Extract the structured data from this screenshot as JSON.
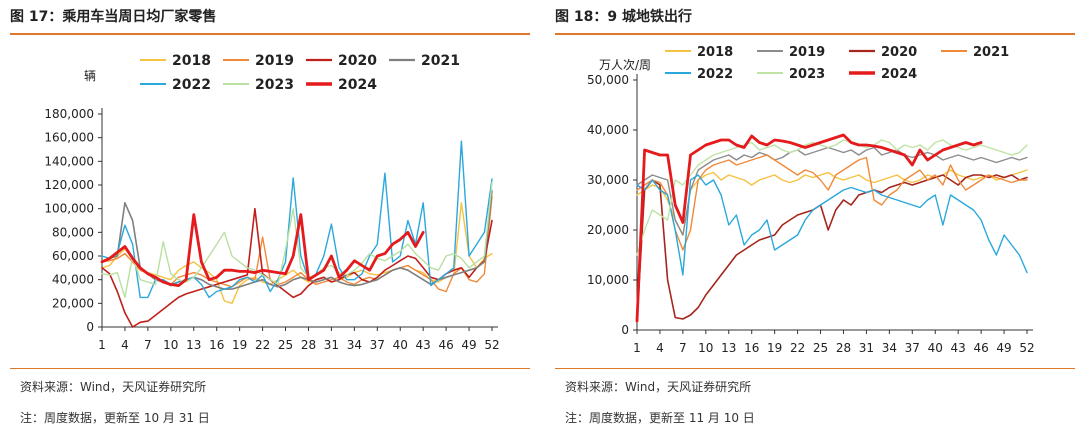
{
  "charts": [
    {
      "title": "图 17：乘用车当周日均厂家零售",
      "source": "资料来源：Wind，天风证券研究所",
      "note": "注：周度数据，更新至 10 月 31 日",
      "chart_data": {
        "type": "line",
        "ylabel": "辆",
        "ylim": [
          0,
          180000
        ],
        "yticks": [
          "0",
          "20,000",
          "40,000",
          "60,000",
          "80,000",
          "100,000",
          "120,000",
          "140,000",
          "160,000",
          "180,000"
        ],
        "xticks": [
          1,
          4,
          7,
          10,
          13,
          16,
          19,
          22,
          25,
          28,
          31,
          34,
          37,
          40,
          43,
          46,
          49,
          52
        ],
        "legend_position": "top",
        "series": [
          {
            "name": "2018",
            "color": "#f5c242",
            "width": 1.4,
            "values": [
              50000,
              52000,
              60000,
              66000,
              58000,
              50000,
              46000,
              44000,
              42000,
              40000,
              48000,
              52000,
              55000,
              50000,
              46000,
              40000,
              22000,
              20000,
              35000,
              40000,
              42000,
              38000,
              36000,
              40000,
              44000,
              48000,
              42000,
              38000,
              40000,
              42000,
              38000,
              40000,
              42000,
              46000,
              48000,
              45000,
              44000,
              46000,
              48000,
              50000,
              52000,
              48000,
              46000,
              40000,
              38000,
              42000,
              44000,
              105000,
              60000,
              50000,
              58000,
              62000
            ]
          },
          {
            "name": "2019",
            "color": "#f08a3a",
            "width": 1.4,
            "values": [
              55000,
              56000,
              58000,
              62000,
              55000,
              48000,
              45000,
              40000,
              38000,
              36000,
              42000,
              44000,
              46000,
              44000,
              40000,
              38000,
              36000,
              34000,
              38000,
              42000,
              40000,
              76000,
              40000,
              36000,
              38000,
              42000,
              46000,
              40000,
              36000,
              38000,
              40000,
              42000,
              38000,
              36000,
              40000,
              42000,
              40000,
              44000,
              48000,
              50000,
              52000,
              48000,
              44000,
              40000,
              32000,
              30000,
              45000,
              50000,
              40000,
              38000,
              45000,
              110000
            ]
          },
          {
            "name": "2020",
            "color": "#c0201c",
            "width": 1.6,
            "values": [
              50000,
              45000,
              30000,
              12000,
              0,
              4000,
              5000,
              10000,
              15000,
              20000,
              25000,
              28000,
              30000,
              32000,
              34000,
              36000,
              38000,
              40000,
              42000,
              44000,
              100000,
              45000,
              40000,
              35000,
              30000,
              25000,
              28000,
              35000,
              40000,
              42000,
              38000,
              40000,
              44000,
              46000,
              40000,
              38000,
              42000,
              48000,
              52000,
              56000,
              60000,
              58000,
              50000,
              42000,
              40000,
              45000,
              48000,
              50000,
              42000,
              50000,
              56000,
              90000
            ]
          },
          {
            "name": "2021",
            "color": "#7f7f7f",
            "width": 1.6,
            "values": [
              55000,
              58000,
              60000,
              105000,
              90000,
              50000,
              45000,
              40000,
              38000,
              35000,
              38000,
              40000,
              42000,
              40000,
              36000,
              34000,
              32000,
              32000,
              34000,
              36000,
              38000,
              40000,
              36000,
              34000,
              36000,
              40000,
              42000,
              40000,
              38000,
              40000,
              42000,
              38000,
              36000,
              35000,
              36000,
              38000,
              40000,
              44000,
              48000,
              50000,
              48000,
              44000,
              40000,
              36000,
              40000,
              42000,
              44000,
              46000,
              48000,
              50000,
              55000,
              115000
            ]
          },
          {
            "name": "2022",
            "color": "#2aa8dc",
            "width": 1.4,
            "values": [
              60000,
              58000,
              62000,
              86000,
              70000,
              25000,
              25000,
              40000,
              40000,
              36000,
              38000,
              40000,
              42000,
              36000,
              25000,
              30000,
              32000,
              34000,
              40000,
              42000,
              38000,
              44000,
              30000,
              40000,
              55000,
              126000,
              60000,
              40000,
              45000,
              60000,
              87000,
              50000,
              40000,
              40000,
              45000,
              60000,
              70000,
              130000,
              55000,
              60000,
              90000,
              70000,
              105000,
              35000,
              40000,
              45000,
              50000,
              157000,
              60000,
              70000,
              80000,
              125000
            ]
          },
          {
            "name": "2023",
            "color": "#b8e0a0",
            "width": 1.4,
            "values": [
              45000,
              44000,
              46000,
              25000,
              60000,
              40000,
              38000,
              36000,
              72000,
              45000,
              40000,
              38000,
              42000,
              50000,
              60000,
              70000,
              80000,
              60000,
              55000,
              50000,
              48000,
              44000,
              40000,
              36000,
              65000,
              100000,
              50000,
              42000,
              44000,
              50000,
              52000,
              46000,
              44000,
              48000,
              54000,
              62000,
              58000,
              56000,
              60000,
              64000,
              70000,
              62000,
              56000,
              50000,
              48000,
              60000,
              62000,
              58000,
              50000,
              55000,
              60000,
              122000
            ]
          },
          {
            "name": "2024",
            "color": "#e41a1c",
            "width": 2.8,
            "values": [
              55000,
              58000,
              63000,
              68000,
              58000,
              50000,
              45000,
              42000,
              38000,
              36000,
              35000,
              40000,
              95000,
              55000,
              40000,
              42000,
              48000,
              48000,
              47000,
              47000,
              46000,
              48000,
              47000,
              46000,
              45000,
              60000,
              95000,
              40000,
              44000,
              48000,
              60000,
              42000,
              48000,
              56000,
              52000,
              48000,
              60000,
              62000,
              70000,
              74000,
              80000,
              68000,
              80000,
              null,
              null,
              null,
              null,
              null,
              null,
              null,
              null,
              null
            ]
          }
        ]
      }
    },
    {
      "title": "图 18：9 城地铁出行",
      "source": "资料来源：Wind，天风证券研究所",
      "note": "注：周度数据，更新至 11 月 10 日",
      "chart_data": {
        "type": "line",
        "ylabel": "万人次/周",
        "ylim": [
          0,
          50000
        ],
        "yticks": [
          "0",
          "10,000",
          "20,000",
          "30,000",
          "40,000",
          "50,000"
        ],
        "xticks": [
          1,
          4,
          7,
          10,
          13,
          16,
          19,
          22,
          25,
          28,
          31,
          34,
          37,
          40,
          43,
          46,
          49,
          52
        ],
        "legend_position": "top",
        "series": [
          {
            "name": "2018",
            "color": "#f5c242",
            "width": 1.4,
            "values": [
              27000,
              28000,
              29000,
              28500,
              26000,
              22000,
              19000,
              28000,
              30000,
              31000,
              31500,
              30000,
              31000,
              30500,
              30000,
              29000,
              30000,
              30500,
              31000,
              30000,
              29500,
              30000,
              31000,
              30500,
              31000,
              31500,
              30500,
              30000,
              30500,
              31000,
              30000,
              29500,
              30000,
              30500,
              31000,
              30000,
              29500,
              30000,
              31000,
              30500,
              31000,
              32000,
              31000,
              30500,
              30000,
              30500,
              31000,
              30000,
              30500,
              31000,
              31500,
              32000
            ]
          },
          {
            "name": "2019",
            "color": "#8c8c8c",
            "width": 1.4,
            "values": [
              29000,
              30000,
              31000,
              30500,
              30000,
              22000,
              19000,
              28000,
              32000,
              33000,
              34000,
              34500,
              35000,
              34000,
              35000,
              34500,
              35500,
              35000,
              34000,
              34500,
              35500,
              36000,
              35000,
              35500,
              36000,
              36500,
              36000,
              35500,
              36000,
              35000,
              36000,
              36500,
              35000,
              35500,
              36000,
              35000,
              34500,
              35000,
              35500,
              35000,
              34000,
              34500,
              35000,
              34500,
              34000,
              34500,
              34000,
              33500,
              34000,
              34500,
              34000,
              34500
            ]
          },
          {
            "name": "2020",
            "color": "#a5261d",
            "width": 1.6,
            "values": [
              2000,
              28000,
              30000,
              29000,
              10000,
              2500,
              2200,
              3000,
              4500,
              7000,
              9000,
              11000,
              13000,
              15000,
              16000,
              17000,
              18000,
              18500,
              19000,
              21000,
              22000,
              23000,
              23500,
              24000,
              25000,
              20000,
              24000,
              26000,
              25000,
              27000,
              27500,
              28000,
              27500,
              28500,
              29000,
              29500,
              29000,
              29500,
              30000,
              30500,
              31000,
              30000,
              29000,
              30500,
              31000,
              31000,
              30500,
              31000,
              30500,
              31000,
              30000,
              30500
            ]
          },
          {
            "name": "2021",
            "color": "#f08a3a",
            "width": 1.4,
            "values": [
              28000,
              29000,
              30000,
              29500,
              27000,
              20000,
              16000,
              20000,
              30000,
              32000,
              33000,
              33500,
              34000,
              33000,
              33500,
              34000,
              34500,
              35000,
              34000,
              33000,
              32000,
              31000,
              32000,
              31500,
              30000,
              28000,
              31000,
              32000,
              33000,
              34000,
              34500,
              26000,
              25000,
              27000,
              28000,
              30000,
              31000,
              32000,
              30000,
              31000,
              29000,
              33000,
              30000,
              28000,
              29000,
              30000,
              31000,
              30500,
              30000,
              29500,
              30000,
              30000
            ]
          },
          {
            "name": "2022",
            "color": "#2aa8dc",
            "width": 1.4,
            "values": [
              29000,
              28000,
              30000,
              28000,
              27000,
              20000,
              11000,
              30000,
              31000,
              29000,
              30000,
              27000,
              21000,
              23000,
              17000,
              19000,
              20000,
              22000,
              16000,
              17000,
              18000,
              19000,
              22000,
              24000,
              25000,
              26000,
              27000,
              28000,
              28500,
              28000,
              27500,
              28000,
              27000,
              26500,
              26000,
              25500,
              25000,
              24500,
              26000,
              27000,
              21000,
              27000,
              26000,
              25000,
              24000,
              22000,
              18000,
              15000,
              19000,
              17000,
              15000,
              11500
            ]
          },
          {
            "name": "2023",
            "color": "#bfe3a5",
            "width": 1.4,
            "values": [
              15000,
              20000,
              24000,
              23000,
              22000,
              30000,
              29000,
              31000,
              33000,
              34000,
              35000,
              35500,
              36000,
              36500,
              37000,
              37500,
              36000,
              36500,
              37000,
              36000,
              35500,
              36000,
              37000,
              37500,
              37000,
              36500,
              37000,
              38000,
              37500,
              37000,
              36500,
              37000,
              38000,
              37500,
              36000,
              37000,
              36500,
              37000,
              36000,
              37500,
              38000,
              37000,
              36500,
              36000,
              36500,
              37000,
              36500,
              36000,
              35500,
              35000,
              35500,
              37000
            ]
          },
          {
            "name": "2024",
            "color": "#e41a1c",
            "width": 2.8,
            "values": [
              1800,
              36000,
              35500,
              35000,
              35000,
              25000,
              21500,
              35000,
              36000,
              37000,
              37500,
              38000,
              38000,
              37000,
              36500,
              38800,
              37500,
              37000,
              38000,
              37800,
              37500,
              37000,
              36500,
              37000,
              37500,
              38000,
              38500,
              39000,
              37500,
              37000,
              37000,
              36800,
              36500,
              36000,
              35500,
              35000,
              33000,
              36000,
              34000,
              35000,
              36000,
              36500,
              37000,
              37500,
              37000,
              37500,
              null,
              null,
              null,
              null,
              null,
              null
            ]
          }
        ]
      }
    }
  ]
}
